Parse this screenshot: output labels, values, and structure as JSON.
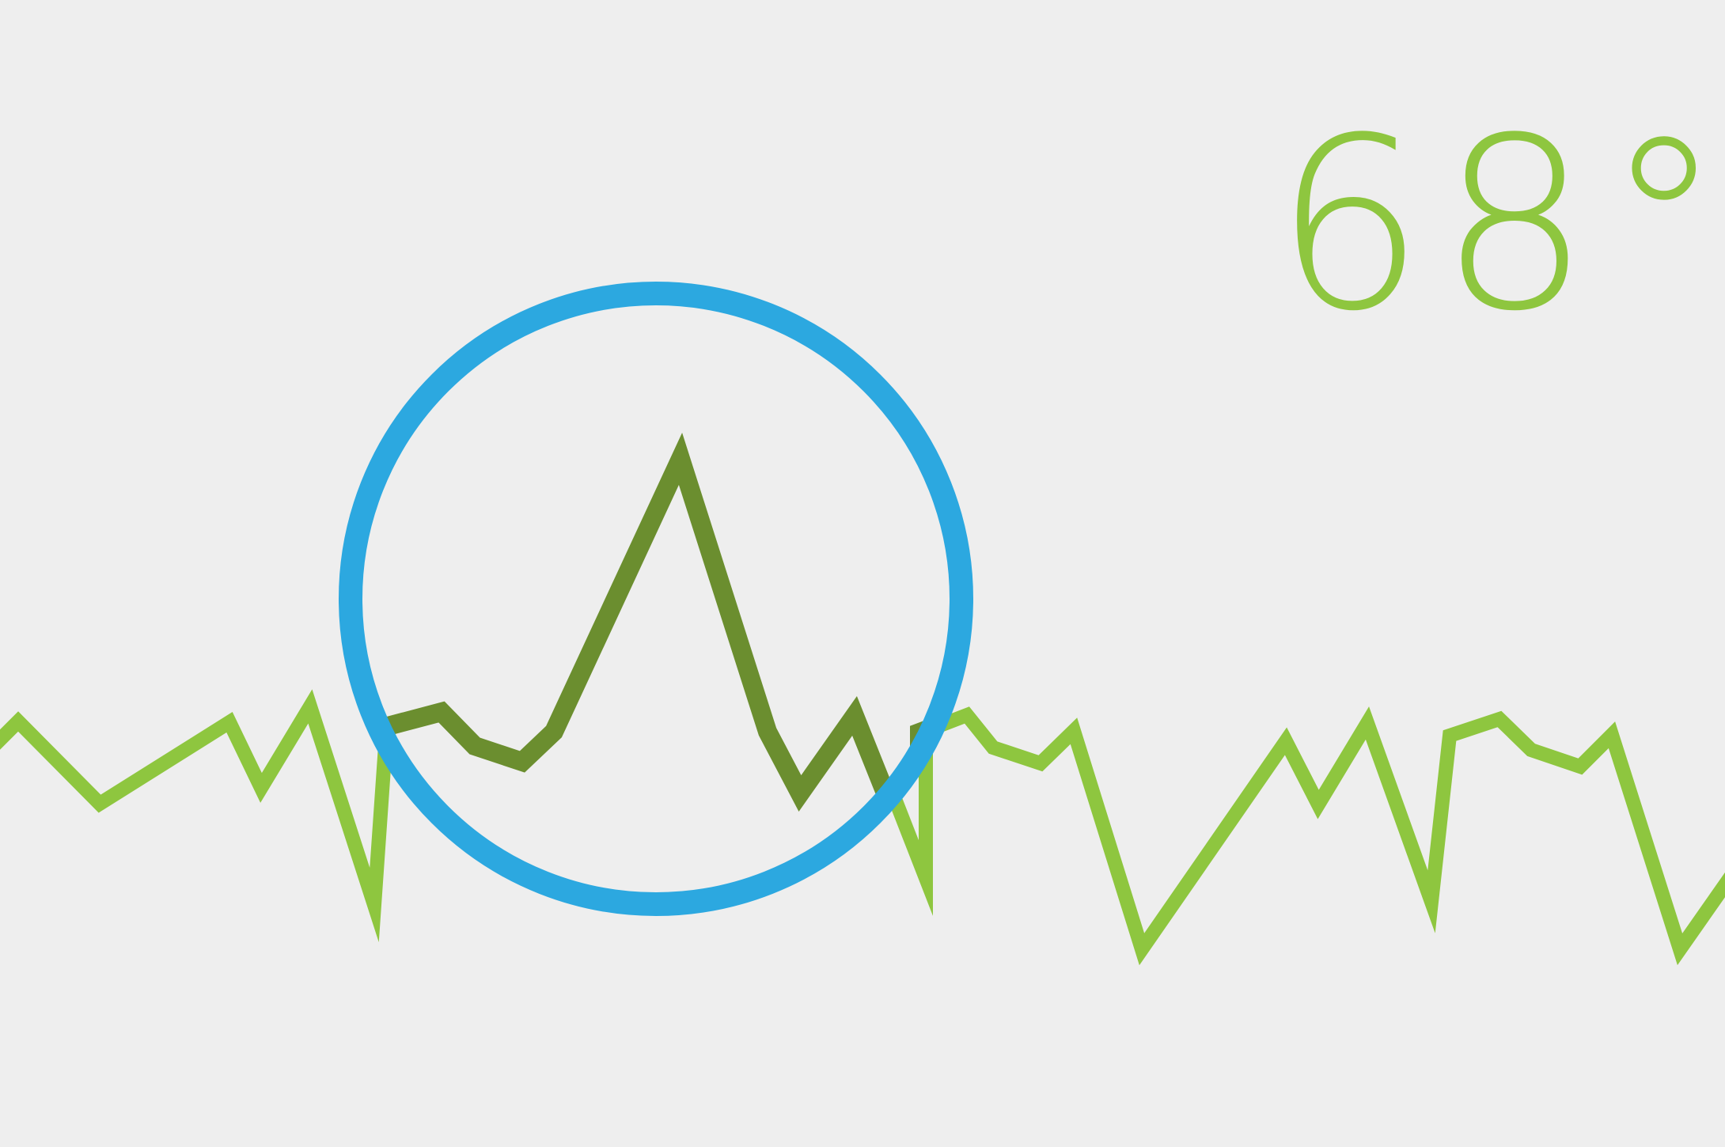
{
  "temperature": {
    "value": "68°"
  },
  "colors": {
    "background": "#eeeeee",
    "line": "#8ec63f",
    "line_magnified": "#6b8e2f",
    "ring": "#2ca8e0"
  },
  "icons": {
    "magnifier": "magnifier-ring-icon"
  }
}
